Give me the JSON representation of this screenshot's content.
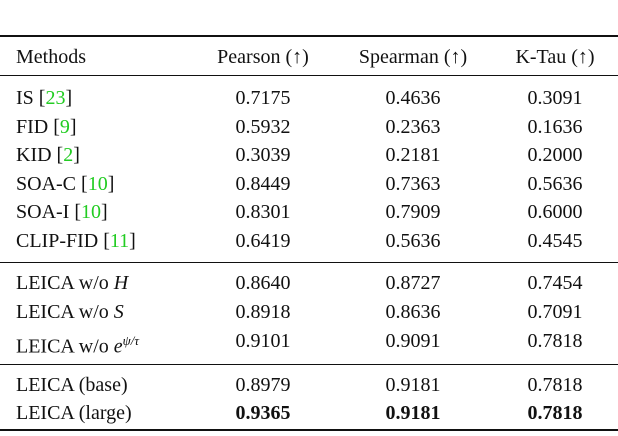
{
  "table": {
    "header": [
      "Methods",
      "Pearson (↑)",
      "Spearman (↑)",
      "K-Tau (↑)"
    ],
    "groups": [
      [
        {
          "method": "IS ",
          "cite": {
            "open": "[",
            "ref": "23",
            "close": "]"
          },
          "values": [
            "0.7175",
            "0.4636",
            "0.3091"
          ]
        },
        {
          "method": "FID ",
          "cite": {
            "open": "[",
            "ref": "9",
            "close": "]"
          },
          "values": [
            "0.5932",
            "0.2363",
            "0.1636"
          ]
        },
        {
          "method": "KID ",
          "cite": {
            "open": "[",
            "ref": "2",
            "close": "]"
          },
          "values": [
            "0.3039",
            "0.2181",
            "0.2000"
          ]
        },
        {
          "method": "SOA-C ",
          "cite": {
            "open": "[",
            "ref": "10",
            "close": "]"
          },
          "values": [
            "0.8449",
            "0.7363",
            "0.5636"
          ]
        },
        {
          "method": "SOA-I ",
          "cite": {
            "open": "[",
            "ref": "10",
            "close": "]"
          },
          "values": [
            "0.8301",
            "0.7909",
            "0.6000"
          ]
        },
        {
          "method": "CLIP-FID ",
          "cite": {
            "open": "[",
            "ref": "11",
            "close": "]"
          },
          "values": [
            "0.6419",
            "0.5636",
            "0.4545"
          ]
        }
      ],
      [
        {
          "method": "LEICA w/o ",
          "math": "H",
          "values": [
            "0.8640",
            "0.8727",
            "0.7454"
          ]
        },
        {
          "method": "LEICA w/o ",
          "math": "S",
          "values": [
            "0.8918",
            "0.8636",
            "0.7091"
          ]
        },
        {
          "method": "LEICA w/o ",
          "math": "e",
          "sup": "ψ/τ",
          "values": [
            "0.9101",
            "0.9091",
            "0.7818"
          ]
        }
      ],
      [
        {
          "method": "LEICA (base)",
          "values": [
            "0.8979",
            "0.9181",
            "0.7818"
          ]
        },
        {
          "method": "LEICA (large)",
          "values": [
            "0.9365",
            "0.9181",
            "0.7818"
          ],
          "bold": true
        }
      ]
    ]
  }
}
